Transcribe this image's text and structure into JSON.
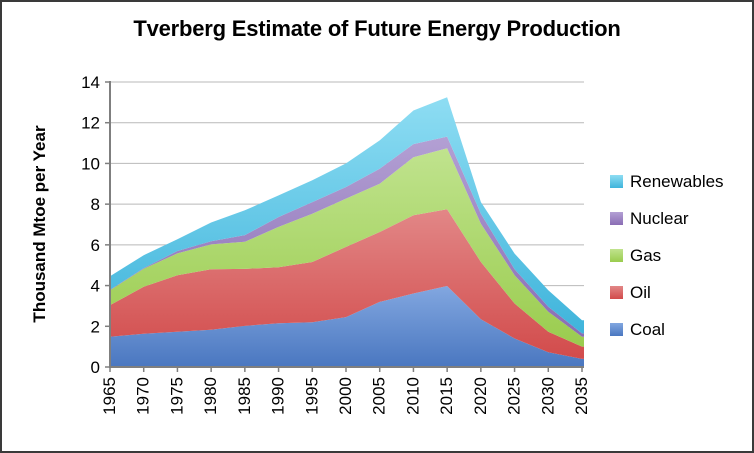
{
  "chart_data": {
    "type": "area",
    "stacked": true,
    "title": "Tverberg Estimate of Future Energy Production",
    "ylabel": "Thousand Mtoe per Year",
    "xlabel": "",
    "x": [
      1965,
      1970,
      1975,
      1980,
      1985,
      1990,
      1995,
      2000,
      2005,
      2010,
      2015,
      2020,
      2025,
      2030,
      2035
    ],
    "y_ticks": [
      0,
      2,
      4,
      6,
      8,
      10,
      12,
      14
    ],
    "ylim": [
      0,
      14
    ],
    "xlim": [
      1965,
      2035
    ],
    "grid": true,
    "legend_position": "right",
    "legend_order": [
      "Renewables",
      "Nuclear",
      "Gas",
      "Oil",
      "Coal"
    ],
    "series": [
      {
        "name": "Coal",
        "color": "#5E8FD4",
        "gradient": [
          "#82A7E0",
          "#4A77C0"
        ],
        "values": [
          1.49,
          1.63,
          1.73,
          1.83,
          2.02,
          2.15,
          2.2,
          2.45,
          3.2,
          3.61,
          3.98,
          2.35,
          1.4,
          0.72,
          0.4
        ]
      },
      {
        "name": "Oil",
        "color": "#D85656",
        "gradient": [
          "#E28787",
          "#D24B4B"
        ],
        "values": [
          1.55,
          2.31,
          2.78,
          2.97,
          2.8,
          2.75,
          2.96,
          3.45,
          3.43,
          3.84,
          3.77,
          2.81,
          1.72,
          1.01,
          0.6
        ]
      },
      {
        "name": "Gas",
        "color": "#A5D860",
        "gradient": [
          "#C0E38E",
          "#9ACC4E"
        ],
        "values": [
          0.73,
          0.89,
          1.07,
          1.22,
          1.33,
          1.98,
          2.37,
          2.37,
          2.37,
          2.85,
          3.0,
          1.88,
          1.39,
          0.98,
          0.49
        ]
      },
      {
        "name": "Nuclear",
        "color": "#9579BE",
        "gradient": [
          "#B3A0D4",
          "#8A6DB4"
        ],
        "values": [
          0.02,
          0.03,
          0.12,
          0.16,
          0.33,
          0.49,
          0.57,
          0.57,
          0.74,
          0.65,
          0.57,
          0.49,
          0.29,
          0.25,
          0.16
        ]
      },
      {
        "name": "Renewables",
        "color": "#52C5E5",
        "gradient": [
          "#8EDDF3",
          "#3FB4DB"
        ],
        "values": [
          0.67,
          0.63,
          0.58,
          0.92,
          1.22,
          1.06,
          1.07,
          1.16,
          1.39,
          1.65,
          1.93,
          0.57,
          0.77,
          0.81,
          0.65
        ]
      }
    ]
  },
  "colors": {
    "grid": "#b9b9b9",
    "axis": "#7f7f7f",
    "tick_label": "#000000",
    "frame_border": "#3a3a3a",
    "background": "#ffffff"
  }
}
